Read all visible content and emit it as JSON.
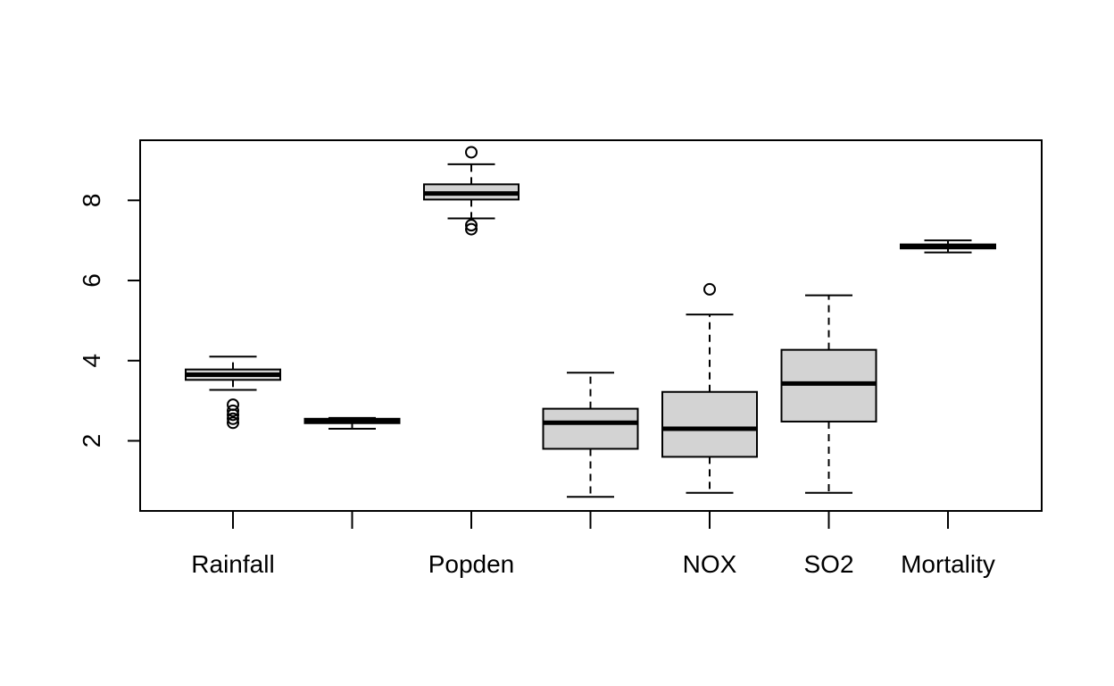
{
  "chart_data": {
    "type": "boxplot",
    "title": "",
    "xlabel": "",
    "ylabel": "",
    "ylim": [
      0.25,
      9.5
    ],
    "yticks": [
      2,
      4,
      6,
      8
    ],
    "grid": false,
    "box_fill": "#d3d3d3",
    "stroke_color": "#000000",
    "categories": [
      {
        "label": "Rainfall",
        "whisker_low": 3.27,
        "q1": 3.52,
        "median": 3.65,
        "q3": 3.78,
        "whisker_high": 4.1,
        "outliers": [
          2.45,
          2.55,
          2.65,
          2.75,
          2.9
        ]
      },
      {
        "label": "",
        "whisker_low": 2.3,
        "q1": 2.44,
        "median": 2.49,
        "q3": 2.55,
        "whisker_high": 2.57,
        "outliers": []
      },
      {
        "label": "Popden",
        "whisker_low": 7.55,
        "q1": 8.02,
        "median": 8.17,
        "q3": 8.4,
        "whisker_high": 8.9,
        "outliers": [
          7.28,
          7.38,
          9.2
        ]
      },
      {
        "label": "",
        "whisker_low": 0.6,
        "q1": 1.8,
        "median": 2.45,
        "q3": 2.8,
        "whisker_high": 3.7,
        "outliers": []
      },
      {
        "label": "NOX",
        "whisker_low": 0.7,
        "q1": 1.6,
        "median": 2.3,
        "q3": 3.22,
        "whisker_high": 5.15,
        "outliers": [
          5.78
        ]
      },
      {
        "label": "SO2",
        "whisker_low": 0.7,
        "q1": 2.48,
        "median": 3.43,
        "q3": 4.27,
        "whisker_high": 5.63,
        "outliers": []
      },
      {
        "label": "Mortality",
        "whisker_low": 6.7,
        "q1": 6.8,
        "median": 6.84,
        "q3": 6.9,
        "whisker_high": 7.0,
        "outliers": []
      }
    ]
  }
}
